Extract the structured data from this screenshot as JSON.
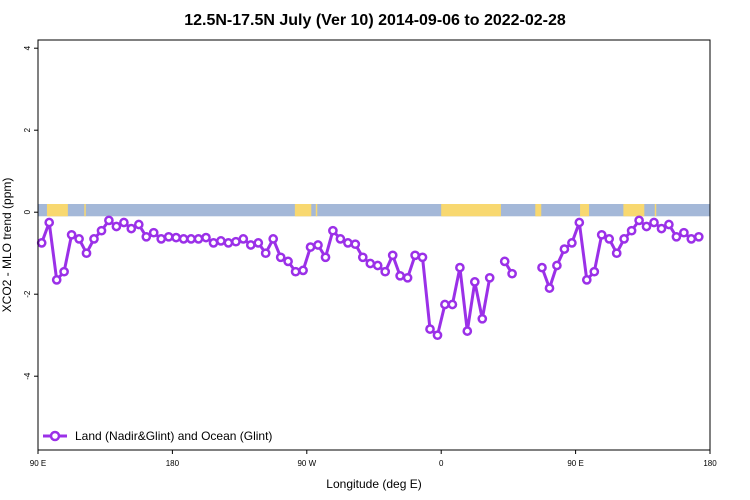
{
  "chart_data": {
    "type": "line",
    "title": "12.5N-17.5N July (Ver 10)   2014-09-06 to 2022-02-28",
    "xlabel": "Longitude (deg E)",
    "ylabel": "XCO2 - MLO trend (ppm)",
    "x_ticks": [
      {
        "value": 90,
        "label": "90 E"
      },
      {
        "value": 180,
        "label": "180"
      },
      {
        "value": 270,
        "label": "90 W"
      },
      {
        "value": 360,
        "label": "0"
      },
      {
        "value": 450,
        "label": "90 E"
      },
      {
        "value": 540,
        "label": "180"
      }
    ],
    "y_ticks": [
      {
        "value": 4,
        "label": "4"
      },
      {
        "value": 2,
        "label": "2"
      },
      {
        "value": 0,
        "label": "0"
      },
      {
        "value": -2,
        "label": "-2"
      },
      {
        "value": -4,
        "label": "-4"
      }
    ],
    "xlim": [
      90,
      540
    ],
    "ylim": [
      -5.8,
      4.2
    ],
    "grid": false,
    "legend_position": "bottom-left",
    "land_ocean_strip": {
      "y_range": [
        -0.1,
        0.2
      ],
      "ocean_color": "#a4b8d8",
      "land_color": "#f8d870",
      "land_segments": [
        [
          96,
          110
        ],
        [
          121,
          122
        ],
        [
          262,
          273
        ],
        [
          276,
          277
        ],
        [
          360,
          400
        ],
        [
          423,
          427
        ],
        [
          453,
          459
        ],
        [
          482,
          496
        ],
        [
          503,
          504
        ]
      ]
    },
    "series": [
      {
        "name": "Land (Nadir&Glint) and Ocean (Glint)",
        "color": "#9b30e8",
        "segments": [
          {
            "x": [
              92.5,
              97.5,
              102.5,
              107.5,
              112.5,
              117.5,
              122.5,
              127.5,
              132.5,
              137.5,
              142.5,
              147.5,
              152.5,
              157.5,
              162.5,
              167.5,
              172.5,
              177.5,
              182.5,
              187.5,
              192.5,
              197.5,
              202.5,
              207.5,
              212.5,
              217.5,
              222.5,
              227.5,
              232.5,
              237.5,
              242.5,
              247.5,
              252.5,
              257.5,
              262.5,
              267.5,
              272.5,
              277.5,
              282.5,
              287.5,
              292.5,
              297.5,
              302.5,
              307.5,
              312.5,
              317.5,
              322.5,
              327.5,
              332.5,
              337.5,
              342.5,
              347.5,
              352.5,
              357.5,
              362.5,
              367.5,
              372.5,
              377.5,
              382.5,
              387.5,
              392.5,
              397.5,
              402.5,
              407.5
            ],
            "y": [
              -0.75,
              -0.25,
              -1.65,
              -1.45,
              -0.55,
              -0.65,
              -1.0,
              -0.65,
              -0.45,
              -0.2,
              -0.35,
              -0.25,
              -0.4,
              -0.3,
              -0.6,
              -0.5,
              -0.65,
              -0.6,
              -0.62,
              -0.65,
              -0.65,
              -0.65,
              -0.62,
              -0.75,
              -0.7,
              -0.75,
              -0.72,
              -0.65,
              -0.8,
              -0.75,
              -1.0,
              -0.65,
              -1.1,
              -1.2,
              -1.45,
              -1.42,
              -0.85,
              -0.8,
              -1.1,
              -0.45,
              -0.65,
              -0.75,
              -0.78,
              -1.1,
              -1.25,
              -1.3,
              -1.45,
              -1.05,
              -1.55,
              -1.6,
              -1.05,
              -1.1,
              -2.85,
              -3.0,
              -2.25,
              -2.25,
              -1.35,
              -2.9,
              -1.7,
              -2.6,
              -1.6,
              null,
              -1.2,
              -1.5
            ]
          },
          {
            "x": [
              427.5,
              432.5,
              437.5,
              442.5,
              447.5,
              452.5,
              457.5,
              462.5,
              467.5,
              472.5,
              477.5,
              482.5,
              487.5,
              492.5,
              497.5,
              502.5,
              507.5,
              512.5,
              517.5,
              522.5,
              527.5,
              532.5,
              537.5
            ],
            "y": [
              -1.35,
              -1.85,
              -1.3,
              -0.9,
              -0.75,
              -0.25,
              -1.65,
              -1.45,
              -0.55,
              -0.65,
              -1.0,
              -0.65,
              -0.45,
              -0.2,
              -0.35,
              -0.25,
              -0.4,
              -0.3,
              -0.6,
              -0.5,
              -0.65,
              -0.6,
              null
            ]
          }
        ]
      }
    ]
  }
}
